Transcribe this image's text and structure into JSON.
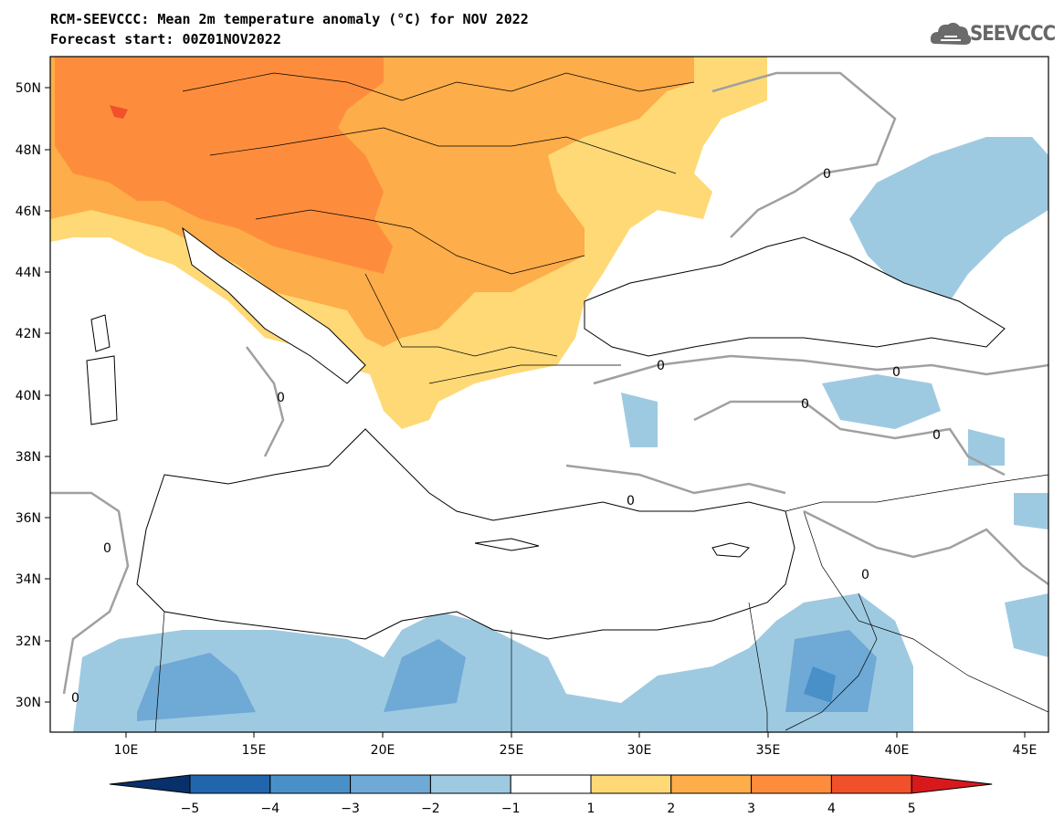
{
  "header": {
    "title": "RCM-SEEVCCC: Mean 2m temperature anomaly (°C) for NOV 2022",
    "subtitle": "Forecast start: 00Z01NOV2022"
  },
  "logo": {
    "text": "SEEVCCC",
    "icon": "cloud-logo-icon"
  },
  "map": {
    "lat_labels": [
      "50N",
      "48N",
      "46N",
      "44N",
      "42N",
      "40N",
      "38N",
      "36N",
      "34N",
      "32N",
      "30N"
    ],
    "lon_labels": [
      "10E",
      "15E",
      "20E",
      "25E",
      "30E",
      "35E",
      "40E",
      "45E"
    ],
    "contour_label": "0"
  },
  "colorbar": {
    "ticks": [
      "−5",
      "−4",
      "−3",
      "−2",
      "−1",
      "1",
      "2",
      "3",
      "4",
      "5"
    ],
    "colors": [
      "#08306b",
      "#2166ac",
      "#4a90c8",
      "#6fa9d6",
      "#9ecae1",
      "#ffffff",
      "#fed976",
      "#fdad49",
      "#fd8d3c",
      "#f0502a",
      "#d7191c"
    ]
  }
}
